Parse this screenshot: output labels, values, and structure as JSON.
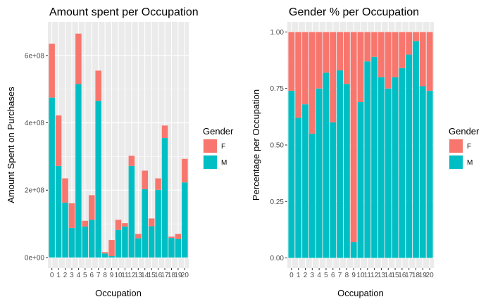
{
  "chart_data": [
    {
      "type": "bar",
      "stacked": true,
      "title": "Amount spent per Occupation",
      "xlabel": "Occupation",
      "ylabel": "Amount Spent on Purchases",
      "categories": [
        "0",
        "1",
        "2",
        "3",
        "4",
        "5",
        "6",
        "7",
        "8",
        "9",
        "10",
        "11",
        "12",
        "13",
        "14",
        "15",
        "16",
        "17",
        "18",
        "19",
        "20"
      ],
      "ylim": [
        0,
        700000000
      ],
      "yticks": [
        0,
        200000000,
        400000000,
        600000000
      ],
      "ytick_labels": [
        "0e+00",
        "2e+08",
        "4e+08",
        "6e+08"
      ],
      "grid": true,
      "legend": {
        "title": "Gender",
        "position": "right"
      },
      "series": [
        {
          "name": "M",
          "color": "#00BFC4",
          "values": [
            475000000,
            272000000,
            163000000,
            88000000,
            515000000,
            92000000,
            112000000,
            465000000,
            12000000,
            4000000,
            82000000,
            92000000,
            272000000,
            57000000,
            203000000,
            93000000,
            201000000,
            355000000,
            58000000,
            55000000,
            223000000
          ]
        },
        {
          "name": "F",
          "color": "#F8766D",
          "values": [
            160000000,
            150000000,
            72000000,
            73000000,
            150000000,
            17000000,
            73000000,
            90000000,
            4000000,
            48000000,
            30000000,
            10000000,
            30000000,
            13000000,
            55000000,
            23000000,
            34000000,
            37000000,
            4000000,
            15000000,
            70000000
          ]
        }
      ]
    },
    {
      "type": "bar",
      "stacked": true,
      "title": "Gender % per Occupation",
      "xlabel": "Occupation",
      "ylabel": "Percentage per Occupation",
      "categories": [
        "0",
        "1",
        "2",
        "3",
        "4",
        "5",
        "6",
        "7",
        "8",
        "9",
        "10",
        "11",
        "12",
        "13",
        "14",
        "15",
        "16",
        "17",
        "18",
        "19",
        "20"
      ],
      "ylim": [
        0,
        1
      ],
      "yticks": [
        0,
        0.25,
        0.5,
        0.75,
        1
      ],
      "ytick_labels": [
        "0.00",
        "0.25",
        "0.50",
        "0.75",
        "1.00"
      ],
      "grid": true,
      "legend": {
        "title": "Gender",
        "position": "right"
      },
      "series": [
        {
          "name": "M",
          "color": "#00BFC4",
          "values": [
            0.74,
            0.62,
            0.68,
            0.55,
            0.75,
            0.82,
            0.6,
            0.83,
            0.77,
            0.07,
            0.69,
            0.87,
            0.89,
            0.8,
            0.75,
            0.8,
            0.84,
            0.9,
            0.96,
            0.76,
            0.74
          ]
        },
        {
          "name": "F",
          "color": "#F8766D",
          "values": [
            0.26,
            0.38,
            0.32,
            0.45,
            0.25,
            0.18,
            0.4,
            0.17,
            0.23,
            0.93,
            0.31,
            0.13,
            0.11,
            0.2,
            0.25,
            0.2,
            0.16,
            0.1,
            0.04,
            0.24,
            0.26
          ]
        }
      ]
    }
  ],
  "legend_title": "Gender",
  "legend_items": [
    "F",
    "M"
  ]
}
